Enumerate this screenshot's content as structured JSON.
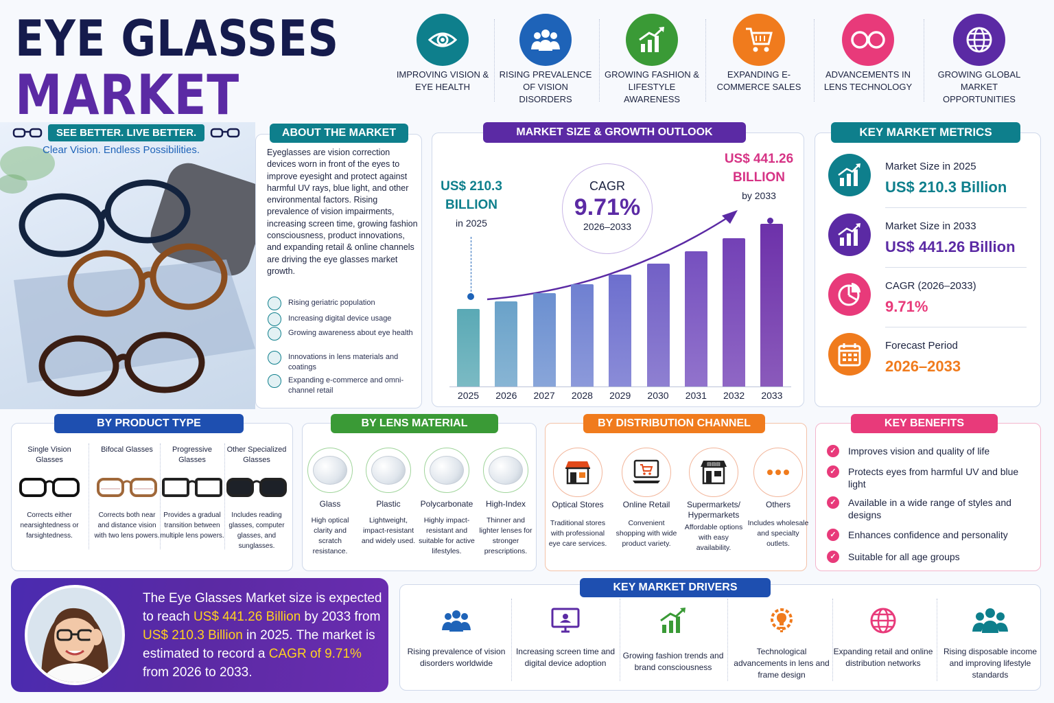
{
  "title": {
    "line1": "EYE GLASSES",
    "line2": "MARKET"
  },
  "tagline": {
    "main": "SEE BETTER. LIVE BETTER.",
    "sub": "Clear Vision. Endless Possibilities."
  },
  "top_features": [
    {
      "label": "IMPROVING VISION & EYE HEALTH",
      "icon": "eye-icon",
      "color": "#0e7f8c"
    },
    {
      "label": "RISING PREVALENCE OF VISION DISORDERS",
      "icon": "people-icon",
      "color": "#1e63b8"
    },
    {
      "label": "GROWING FASHION & LIFESTYLE AWARENESS",
      "icon": "growth-chart-icon",
      "color": "#3a9a36"
    },
    {
      "label": "EXPANDING E-COMMERCE SALES",
      "icon": "shopping-cart-icon",
      "color": "#f07b1d"
    },
    {
      "label": "ADVANCEMENTS IN LENS TECHNOLOGY",
      "icon": "glasses-icon",
      "color": "#e83a7a"
    },
    {
      "label": "GROWING GLOBAL MARKET OPPORTUNITIES",
      "icon": "globe-icon",
      "color": "#5b2aa4"
    }
  ],
  "about": {
    "heading": "ABOUT THE MARKET",
    "text": "Eyeglasses are vision correction devices worn in front of the eyes to improve eyesight and protect against harmful UV rays, blue light, and other environmental factors. Rising prevalence of vision impairments, increasing screen time, growing fashion consciousness, product innovations, and expanding retail & online channels are driving the eye glasses market growth.",
    "points": [
      "Rising geriatric population",
      "Increasing digital device usage",
      "Growing awareness about eye health",
      "Innovations in lens materials and coatings",
      "Expanding e-commerce and omni-channel retail"
    ]
  },
  "chart_data": {
    "type": "bar",
    "title": "MARKET SIZE & GROWTH OUTLOOK",
    "categories": [
      "2025",
      "2026",
      "2027",
      "2028",
      "2029",
      "2030",
      "2031",
      "2032",
      "2033"
    ],
    "values": [
      210.3,
      230.7,
      253.1,
      277.7,
      304.6,
      334.2,
      366.6,
      402.2,
      441.26
    ],
    "ylim": [
      0,
      480
    ],
    "start_label": {
      "value": "US$ 210.3",
      "unit": "BILLION",
      "year": "in 2025"
    },
    "end_label": {
      "value": "US$ 441.26",
      "unit": "BILLION",
      "year": "by 2033"
    },
    "cagr": {
      "label": "CAGR",
      "value": "9.71%",
      "period": "2026–2033"
    }
  },
  "metrics": {
    "heading": "KEY MARKET METRICS",
    "items": [
      {
        "label": "Market Size in 2025",
        "value": "US$ 210.3 Billion",
        "color": "#0e7f8c",
        "icon": "bar-chart-icon"
      },
      {
        "label": "Market Size in 2033",
        "value": "US$ 441.26 Billion",
        "color": "#5b2aa4",
        "icon": "bar-chart-icon"
      },
      {
        "label": "CAGR (2026–2033)",
        "value": "9.71%",
        "color": "#e83a7a",
        "icon": "pie-chart-icon"
      },
      {
        "label": "Forecast Period",
        "value": "2026–2033",
        "color": "#f07b1d",
        "icon": "calendar-icon"
      }
    ]
  },
  "product_type": {
    "heading": "BY PRODUCT TYPE",
    "items": [
      {
        "name": "Single Vision Glasses",
        "desc": "Corrects either nearsightedness or farsightedness."
      },
      {
        "name": "Bifocal Glasses",
        "desc": "Corrects both near and distance vision with two lens powers."
      },
      {
        "name": "Progressive Glasses",
        "desc": "Provides a gradual transition between multiple lens powers."
      },
      {
        "name": "Other Specialized Glasses",
        "desc": "Includes reading glasses, computer glasses, and sunglasses."
      }
    ]
  },
  "lens_material": {
    "heading": "BY LENS MATERIAL",
    "items": [
      {
        "name": "Glass",
        "desc": "High optical clarity and scratch resistance."
      },
      {
        "name": "Plastic",
        "desc": "Lightweight, impact-resistant and widely used."
      },
      {
        "name": "Polycarbonate",
        "desc": "Highly impact-resistant and suitable for active lifestyles."
      },
      {
        "name": "High-Index",
        "desc": "Thinner and lighter lenses for stronger prescriptions."
      }
    ]
  },
  "distribution": {
    "heading": "BY DISTRIBUTION CHANNEL",
    "items": [
      {
        "name": "Optical Stores",
        "desc": "Traditional stores with professional eye care services.",
        "icon": "store-icon"
      },
      {
        "name": "Online Retail",
        "desc": "Convenient shopping with wide product variety.",
        "icon": "laptop-cart-icon"
      },
      {
        "name": "Supermarkets/ Hypermarkets",
        "desc": "Affordable options with easy availability.",
        "icon": "supermarket-icon"
      },
      {
        "name": "Others",
        "desc": "Includes wholesale and specialty outlets.",
        "icon": "more-icon"
      }
    ]
  },
  "benefits": {
    "heading": "KEY BENEFITS",
    "items": [
      "Improves vision and quality of life",
      "Protects eyes from harmful UV and blue light",
      "Available in a wide range of styles and designs",
      "Enhances confidence and personality",
      "Suitable for all age groups"
    ]
  },
  "summary": {
    "t1": "The Eye Glasses Market size is expected to reach ",
    "h1": "US$ 441.26 Billion",
    "t2": " by 2033 from ",
    "h2": "US$ 210.3 Billion",
    "t3": " in 2025. The market is estimated to record a ",
    "h3": "CAGR of 9.71%",
    "t4": " from 2026 to 2033."
  },
  "drivers": {
    "heading": "KEY MARKET DRIVERS",
    "items": [
      {
        "label": "Rising prevalence of vision disorders worldwide",
        "icon": "people-icon",
        "color": "#1e63b8"
      },
      {
        "label": "Increasing screen time and digital device adoption",
        "icon": "monitor-icon",
        "color": "#5b2aa4"
      },
      {
        "label": "Growing fashion trends and brand consciousness",
        "icon": "growth-chart-icon",
        "color": "#3a9a36"
      },
      {
        "label": "Technological advancements in lens and frame design",
        "icon": "gear-bulb-icon",
        "color": "#f07b1d"
      },
      {
        "label": "Expanding retail and online distribution networks",
        "icon": "globe-icon",
        "color": "#e83a7a"
      },
      {
        "label": "Rising disposable income and improving lifestyle standards",
        "icon": "group-icon",
        "color": "#0e7f8c"
      }
    ]
  }
}
